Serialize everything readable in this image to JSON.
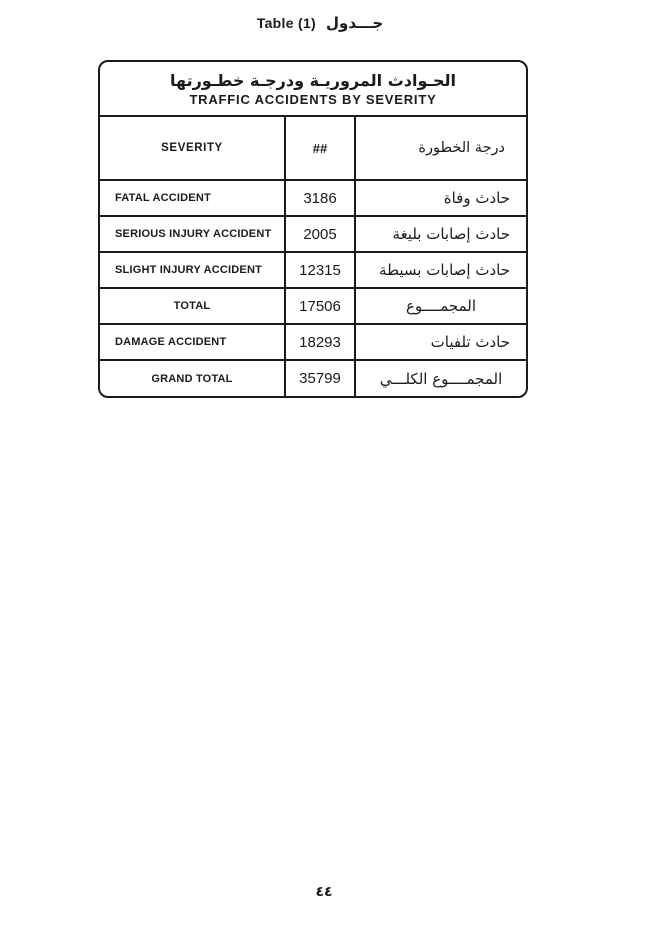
{
  "page": {
    "top_title": {
      "en": "Table (1)",
      "ar": "جـــدول"
    },
    "page_number": "٤٤"
  },
  "table": {
    "title_ar": "الحـوادث المروريـة ودرجـة خطـورتها",
    "title_en": "TRAFFIC ACCIDENTS BY SEVERITY",
    "columns": {
      "severity_en": "SEVERITY",
      "count": "##",
      "severity_ar": "درجة الخطورة"
    },
    "rows": [
      {
        "label": "FATAL ACCIDENT",
        "value": "3186",
        "label_ar": "حادث وفاة"
      },
      {
        "label": "SERIOUS INJURY ACCIDENT",
        "value": "2005",
        "label_ar": "حادث إصابات بليغة"
      },
      {
        "label": "SLIGHT INJURY ACCIDENT",
        "value": "12315",
        "label_ar": "حادث إصابات بسيطة"
      },
      {
        "label": "TOTAL",
        "value": "17506",
        "label_ar": "المجمــــوع"
      },
      {
        "label": "DAMAGE ACCIDENT",
        "value": "18293",
        "label_ar": "حادث تلفيات"
      },
      {
        "label": "GRAND TOTAL",
        "value": "35799",
        "label_ar": "المجمــــوع الكلـــي"
      }
    ],
    "colors": {
      "ink": "#1b1b1b",
      "paper": "#ffffff"
    }
  }
}
